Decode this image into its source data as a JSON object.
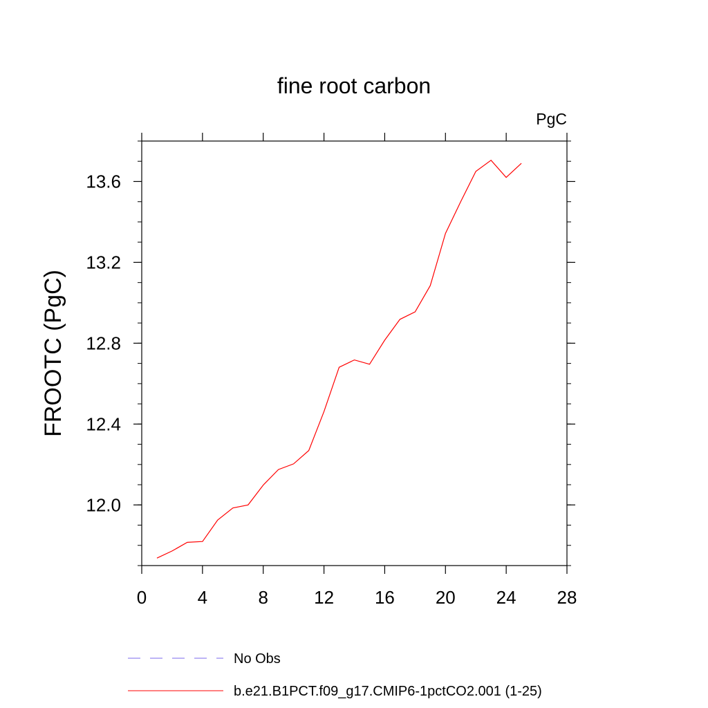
{
  "chart_data": {
    "type": "line",
    "title": "fine root carbon",
    "units_label": "PgC",
    "xlabel": "",
    "ylabel": "FROOTC  (PgC)",
    "xlim": [
      0,
      28
    ],
    "ylim": [
      11.7,
      13.8
    ],
    "x_ticks": [
      0,
      4,
      8,
      12,
      16,
      20,
      24,
      28
    ],
    "y_ticks": [
      12.0,
      12.4,
      12.8,
      13.2,
      13.6
    ],
    "x_tick_labels": [
      "0",
      "4",
      "8",
      "12",
      "16",
      "20",
      "24",
      "28"
    ],
    "y_tick_labels": [
      "12.0",
      "12.4",
      "12.8",
      "13.2",
      "13.6"
    ],
    "grid": false,
    "legend_position": "bottom-left",
    "series": [
      {
        "name": "b.e21.B1PCT.f09_g17.CMIP6-1pctCO2.001 (1-25)",
        "color": "#ff0000",
        "dash": "solid",
        "x": [
          1,
          2,
          3,
          4,
          5,
          6,
          7,
          8,
          9,
          10,
          11,
          12,
          13,
          14,
          15,
          16,
          17,
          18,
          19,
          20,
          21,
          22,
          23,
          24,
          25
        ],
        "y": [
          11.737,
          11.772,
          11.815,
          11.819,
          11.925,
          11.985,
          12.0,
          12.098,
          12.175,
          12.203,
          12.269,
          12.462,
          12.681,
          12.717,
          12.696,
          12.815,
          12.918,
          12.955,
          13.085,
          13.343,
          13.5,
          13.65,
          13.705,
          13.62,
          13.69
        ]
      }
    ],
    "legend": [
      {
        "label": "No Obs",
        "color": "#7b68ee",
        "dash": "dashed"
      },
      {
        "label": "b.e21.B1PCT.f09_g17.CMIP6-1pctCO2.001 (1-25)",
        "color": "#ff0000",
        "dash": "solid"
      }
    ]
  }
}
